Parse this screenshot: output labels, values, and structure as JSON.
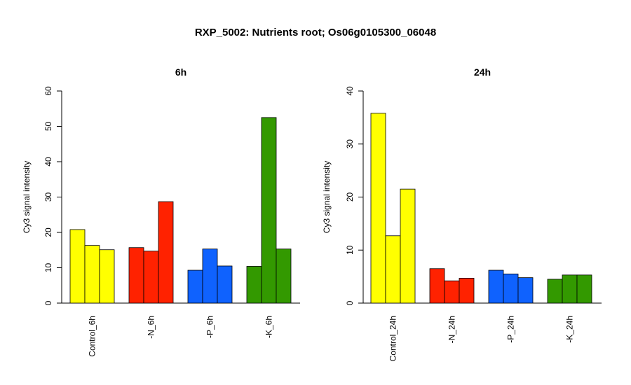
{
  "figure": {
    "title": "RXP_5002: Nutrients root; Os06g0105300_06048"
  },
  "chart_data": [
    {
      "type": "bar",
      "title": "6h",
      "ylabel": "Cy3 signal intensity",
      "xlabel": "",
      "ylim": [
        0,
        60
      ],
      "yticks": [
        0,
        10,
        20,
        30,
        40,
        50,
        60
      ],
      "grid": false,
      "groups": [
        {
          "label": "Control_6h",
          "color": "#FFFF00",
          "values": [
            20.8,
            16.3,
            15.1
          ]
        },
        {
          "label": "-N_6h",
          "color": "#FF2200",
          "values": [
            15.7,
            14.7,
            28.7
          ]
        },
        {
          "label": "-P_6h",
          "color": "#0F62FE",
          "values": [
            9.3,
            15.3,
            10.5
          ]
        },
        {
          "label": "-K_6h",
          "color": "#339900",
          "values": [
            10.4,
            52.5,
            15.3
          ]
        }
      ]
    },
    {
      "type": "bar",
      "title": "24h",
      "ylabel": "Cy3 signal intensity",
      "xlabel": "",
      "ylim": [
        0,
        40
      ],
      "yticks": [
        0,
        10,
        20,
        30,
        40
      ],
      "grid": false,
      "groups": [
        {
          "label": "Control_24h",
          "color": "#FFFF00",
          "values": [
            35.8,
            12.7,
            21.5
          ]
        },
        {
          "label": "-N_24h",
          "color": "#FF2200",
          "values": [
            6.5,
            4.2,
            4.7
          ]
        },
        {
          "label": "-P_24h",
          "color": "#0F62FE",
          "values": [
            6.2,
            5.5,
            4.8
          ]
        },
        {
          "label": "-K_24h",
          "color": "#339900",
          "values": [
            4.5,
            5.3,
            5.3
          ]
        }
      ]
    }
  ]
}
